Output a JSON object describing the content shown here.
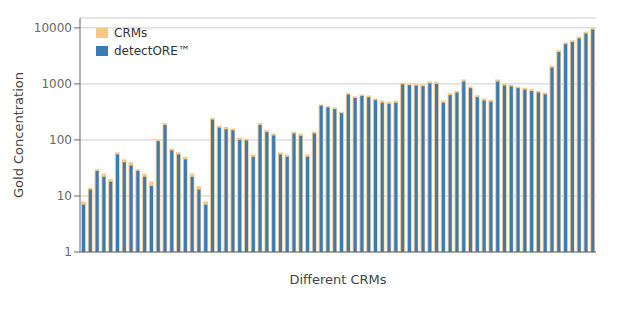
{
  "chart_data": {
    "type": "bar",
    "xlabel": "Different CRMs",
    "ylabel": "Gold Concentration",
    "categories": [
      null,
      null,
      null,
      null,
      null,
      null,
      null,
      null,
      null,
      null,
      null,
      null,
      null,
      null,
      null,
      null,
      null,
      null,
      null,
      null,
      null,
      null,
      null,
      null,
      null,
      null,
      null,
      null,
      null,
      null,
      null,
      null,
      null,
      null,
      null,
      null,
      null,
      null,
      null,
      null,
      null,
      null,
      null,
      null,
      null,
      null,
      null,
      null,
      null,
      null,
      null,
      null,
      null,
      null,
      null,
      null,
      null,
      null,
      null,
      null,
      null,
      null,
      null,
      null,
      null,
      null,
      null,
      null,
      null,
      null,
      null,
      null,
      null,
      null,
      null,
      null
    ],
    "series": [
      {
        "name": "CRMs",
        "color": "#f5c98a",
        "values": [
          8,
          14,
          30,
          25,
          20,
          60,
          45,
          40,
          30,
          25,
          18,
          100,
          200,
          70,
          60,
          50,
          25,
          15,
          8,
          250,
          180,
          170,
          160,
          110,
          105,
          55,
          200,
          150,
          130,
          60,
          55,
          140,
          130,
          55,
          140,
          430,
          400,
          380,
          320,
          680,
          600,
          650,
          620,
          550,
          500,
          480,
          500,
          1050,
          1020,
          1000,
          980,
          1100,
          1080,
          500,
          680,
          750,
          1200,
          900,
          630,
          550,
          520,
          1200,
          1000,
          970,
          900,
          850,
          800,
          750,
          700,
          2100,
          4000,
          5500,
          6000,
          7000,
          8500,
          10000
        ]
      },
      {
        "name": "detectORE™",
        "color": "#3a7ab5",
        "values": [
          7,
          13,
          28,
          22,
          18,
          55,
          40,
          35,
          28,
          22,
          15,
          95,
          185,
          65,
          55,
          45,
          22,
          13,
          7,
          230,
          165,
          155,
          148,
          100,
          98,
          50,
          185,
          138,
          120,
          55,
          50,
          130,
          118,
          50,
          130,
          410,
          380,
          355,
          300,
          645,
          560,
          610,
          575,
          510,
          460,
          440,
          460,
          985,
          950,
          930,
          910,
          1020,
          1000,
          460,
          630,
          700,
          1100,
          840,
          580,
          505,
          480,
          1100,
          940,
          900,
          840,
          790,
          745,
          700,
          650,
          1950,
          3700,
          5100,
          5600,
          6500,
          7900,
          9300
        ]
      }
    ],
    "log": "y",
    "ylim": [
      1,
      15000
    ],
    "yticks": [
      1,
      10,
      100,
      1000,
      10000
    ],
    "grid": true,
    "legend": "upper left",
    "tick_labels": "y"
  }
}
